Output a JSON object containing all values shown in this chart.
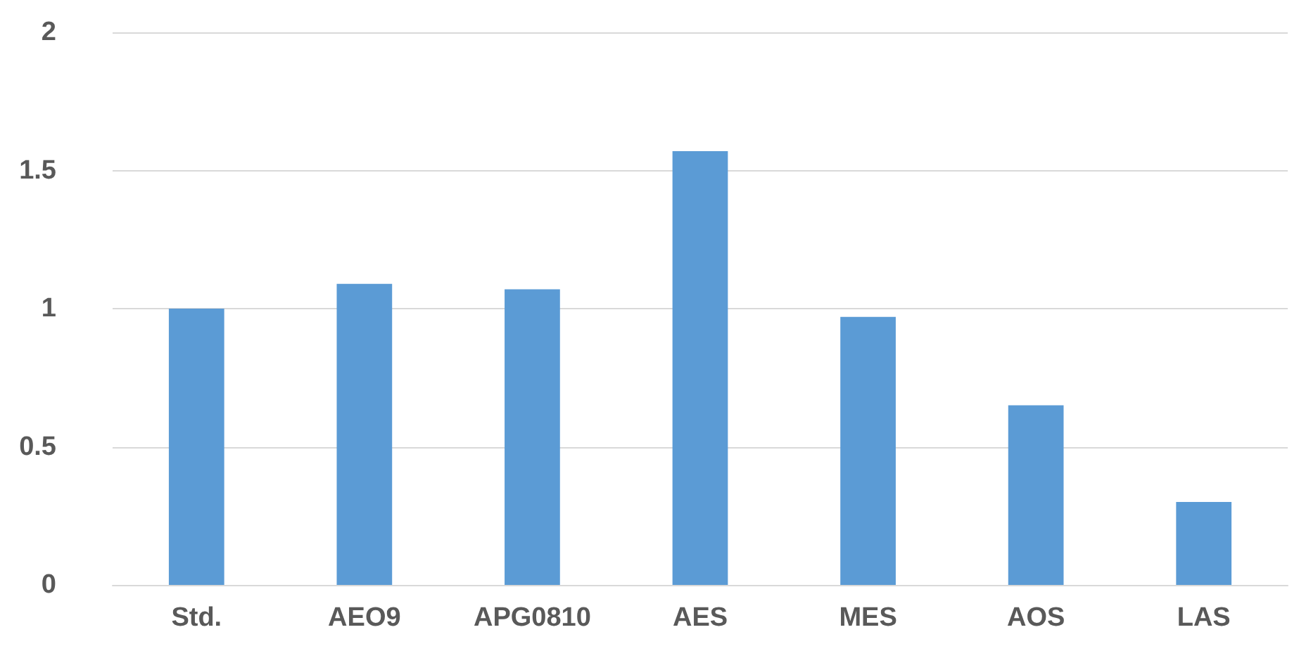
{
  "chart_data": {
    "type": "bar",
    "categories": [
      "Std.",
      "AEO9",
      "APG0810",
      "AES",
      "MES",
      "AOS",
      "LAS"
    ],
    "values": [
      1.0,
      1.09,
      1.07,
      1.57,
      0.97,
      0.65,
      0.3
    ],
    "color": "#5b9bd5",
    "ylim": [
      0,
      2
    ],
    "yticks": [
      0,
      0.5,
      1,
      1.5,
      2
    ],
    "grid": "y"
  }
}
